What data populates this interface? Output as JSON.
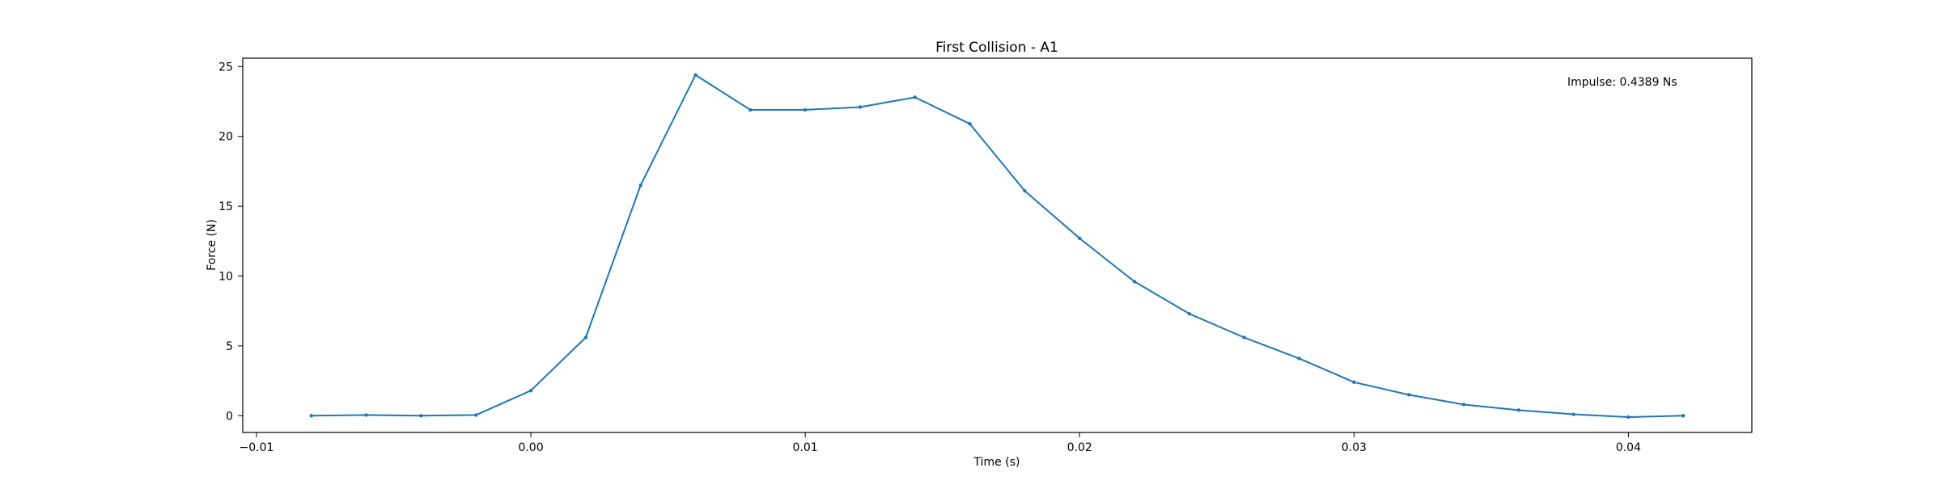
{
  "chart_data": {
    "type": "line",
    "title": "First Collision - A1",
    "xlabel": "Time (s)",
    "ylabel": "Force (N)",
    "xlim": [
      -0.0105,
      0.0445
    ],
    "ylim": [
      -1.2,
      25.6
    ],
    "xticks": [
      -0.01,
      0.0,
      0.01,
      0.02,
      0.03,
      0.04
    ],
    "xtick_labels": [
      "−0.01",
      "0.00",
      "0.01",
      "0.02",
      "0.03",
      "0.04"
    ],
    "yticks": [
      0,
      5,
      10,
      15,
      20,
      25
    ],
    "ytick_labels": [
      "0",
      "5",
      "10",
      "15",
      "20",
      "25"
    ],
    "grid": false,
    "annotation": "Impulse: 0.4389 Ns",
    "series": [
      {
        "color": "#1f77b4",
        "x": [
          -0.008,
          -0.006,
          -0.004,
          -0.002,
          0.0,
          0.002,
          0.004,
          0.006,
          0.008,
          0.01,
          0.012,
          0.014,
          0.016,
          0.018,
          0.02,
          0.022,
          0.024,
          0.026,
          0.028,
          0.03,
          0.032,
          0.034,
          0.036,
          0.038,
          0.04,
          0.042
        ],
        "y": [
          0.0,
          0.05,
          0.0,
          0.05,
          1.8,
          5.6,
          16.5,
          24.4,
          21.9,
          21.9,
          22.1,
          22.8,
          20.9,
          16.1,
          12.7,
          9.6,
          7.3,
          5.6,
          4.1,
          2.4,
          1.5,
          0.8,
          0.4,
          0.1,
          -0.1,
          0.0
        ]
      }
    ]
  }
}
